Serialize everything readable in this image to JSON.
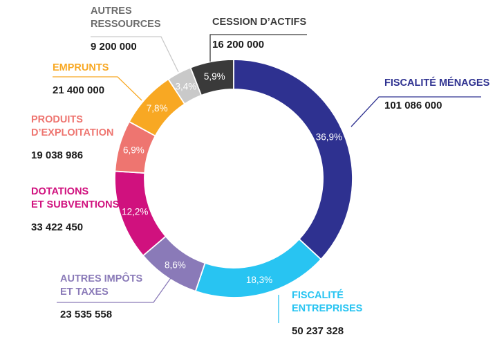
{
  "chart_data": {
    "type": "pie",
    "title": "",
    "legend": "none",
    "slices": [
      {
        "label_lines": [
          "FISCALITÉ MÉNAGES"
        ],
        "amount": "101 086 000",
        "value": 101086000,
        "percent_label": "36,9%",
        "color": "#2e3190"
      },
      {
        "label_lines": [
          "FISCALITÉ",
          "ENTREPRISES"
        ],
        "amount": "50 237 328",
        "value": 50237328,
        "percent_label": "18,3%",
        "color": "#28c4f2"
      },
      {
        "label_lines": [
          "AUTRES IMPÔTS",
          "ET TAXES"
        ],
        "amount": "23 535 558",
        "value": 23535558,
        "percent_label": "8,6%",
        "color": "#8a7ab8"
      },
      {
        "label_lines": [
          "DOTATIONS",
          "ET SUBVENTIONS"
        ],
        "amount": "33 422 450",
        "value": 33422450,
        "percent_label": "12,2%",
        "color": "#d0117e"
      },
      {
        "label_lines": [
          "PRODUITS",
          "D’EXPLOITATION"
        ],
        "amount": "19 038 986",
        "value": 19038986,
        "percent_label": "6,9%",
        "color": "#ee7570"
      },
      {
        "label_lines": [
          "EMPRUNTS"
        ],
        "amount": "21 400 000",
        "value": 21400000,
        "percent_label": "7,8%",
        "color": "#f8a823"
      },
      {
        "label_lines": [
          "AUTRES",
          "RESSOURCES"
        ],
        "amount": "9 200 000",
        "value": 9200000,
        "percent_label": "3,4%",
        "color": "#c9c9c9"
      },
      {
        "label_lines": [
          "CESSION D’ACTIFS"
        ],
        "amount": "16 200 000",
        "value": 16200000,
        "percent_label": "5,9%",
        "color": "#3a3a3a"
      }
    ]
  },
  "colors": {
    "label_text": {
      "autres_ressources": "#6b6b6b",
      "cession_actifs": "#3a3a3a"
    }
  }
}
